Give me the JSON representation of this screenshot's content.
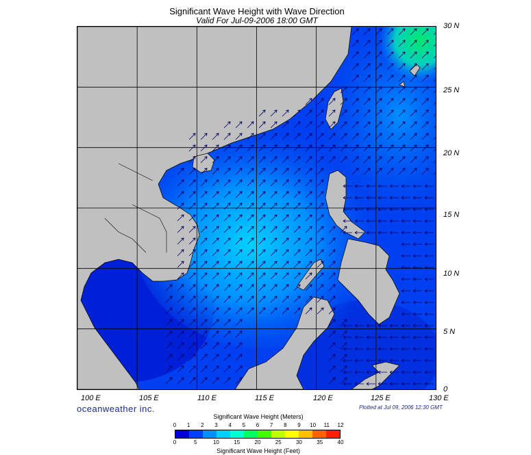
{
  "header": {
    "title": "Significant Wave Height with Wave Direction",
    "subtitle": "Valid For Jul-09-2006 18:00 GMT"
  },
  "axes": {
    "longitude_labels": [
      "100 E",
      "105 E",
      "110 E",
      "115 E",
      "120 E",
      "125 E",
      "130 E"
    ],
    "latitude_labels": [
      "30 N",
      "25 N",
      "20 N",
      "15 N",
      "10 N",
      "5 N",
      "0"
    ]
  },
  "footer": {
    "brand": "oceanweather inc.",
    "plotted": "Plotted at Jul 09, 2006 12:30 GMT"
  },
  "colorbar": {
    "title_meters": "Significant Wave Height (Meters)",
    "title_feet": "Significant Wave Height (Feet)",
    "meters_ticks": [
      "0",
      "1",
      "2",
      "3",
      "4",
      "5",
      "6",
      "7",
      "8",
      "9",
      "10",
      "11",
      "12"
    ],
    "feet_ticks": [
      "0",
      "5",
      "10",
      "15",
      "20",
      "25",
      "30",
      "35",
      "40"
    ],
    "colors": [
      "#0000d8",
      "#0040ff",
      "#0090ff",
      "#00d0ff",
      "#00ffd0",
      "#00ff60",
      "#40ff00",
      "#c0ff00",
      "#ffff00",
      "#ffc000",
      "#ff6000",
      "#ff2000"
    ]
  },
  "map": {
    "extent": {
      "lon_min": 100,
      "lon_max": 130,
      "lat_min": 0,
      "lat_max": 30
    },
    "land_color": "#c0c0c0",
    "ocean_deep_color": "#0030e0",
    "arrow_color": "#000066"
  }
}
